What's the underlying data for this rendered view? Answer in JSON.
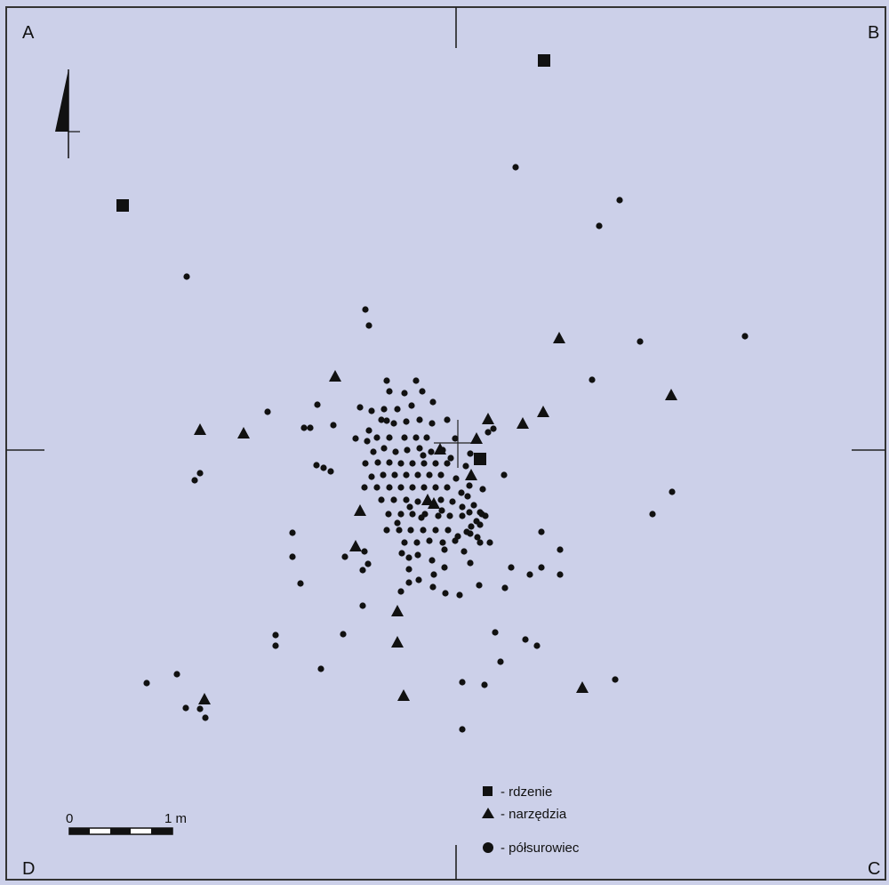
{
  "corners": {
    "a": "A",
    "b": "B",
    "c": "C",
    "d": "D"
  },
  "colors": {
    "background": "#ccd0e9",
    "ink": "#111111",
    "frame": "#333333"
  },
  "scale_bar": {
    "start_label": "0",
    "end_label": "1 m"
  },
  "north_arrow": {
    "icon": "north-arrow-icon"
  },
  "legend": [
    {
      "symbol": "square",
      "label": "- rdzenie"
    },
    {
      "symbol": "triangle",
      "label": "- narzędzia"
    },
    {
      "symbol": "circle",
      "label": "- półsurowiec"
    }
  ],
  "finds": {
    "rdzenie": [
      [
        138,
        231
      ],
      [
        612,
        68
      ],
      [
        540,
        516
      ]
    ],
    "narzedzia": [
      [
        225,
        483
      ],
      [
        274,
        487
      ],
      [
        377,
        423
      ],
      [
        629,
        380
      ],
      [
        549,
        471
      ],
      [
        588,
        476
      ],
      [
        611,
        463
      ],
      [
        755,
        444
      ],
      [
        495,
        505
      ],
      [
        536,
        493
      ],
      [
        530,
        534
      ],
      [
        405,
        574
      ],
      [
        400,
        614
      ],
      [
        488,
        566
      ],
      [
        481,
        562
      ],
      [
        447,
        687
      ],
      [
        447,
        722
      ],
      [
        454,
        782
      ],
      [
        230,
        786
      ],
      [
        655,
        773
      ]
    ],
    "polsurowiec": [
      [
        580,
        188
      ],
      [
        697,
        225
      ],
      [
        674,
        254
      ],
      [
        210,
        311
      ],
      [
        411,
        348
      ],
      [
        415,
        366
      ],
      [
        838,
        378
      ],
      [
        720,
        384
      ],
      [
        666,
        427
      ],
      [
        301,
        463
      ],
      [
        357,
        455
      ],
      [
        435,
        428
      ],
      [
        468,
        428
      ],
      [
        438,
        440
      ],
      [
        455,
        442
      ],
      [
        475,
        440
      ],
      [
        487,
        452
      ],
      [
        463,
        456
      ],
      [
        447,
        460
      ],
      [
        432,
        460
      ],
      [
        418,
        462
      ],
      [
        405,
        458
      ],
      [
        429,
        472
      ],
      [
        443,
        476
      ],
      [
        457,
        474
      ],
      [
        472,
        472
      ],
      [
        486,
        476
      ],
      [
        503,
        472
      ],
      [
        415,
        484
      ],
      [
        400,
        493
      ],
      [
        413,
        496
      ],
      [
        424,
        492
      ],
      [
        438,
        492
      ],
      [
        455,
        492
      ],
      [
        468,
        492
      ],
      [
        480,
        492
      ],
      [
        512,
        493
      ],
      [
        420,
        508
      ],
      [
        432,
        504
      ],
      [
        445,
        508
      ],
      [
        458,
        506
      ],
      [
        472,
        504
      ],
      [
        485,
        508
      ],
      [
        411,
        521
      ],
      [
        425,
        520
      ],
      [
        438,
        520
      ],
      [
        451,
        521
      ],
      [
        464,
        521
      ],
      [
        477,
        521
      ],
      [
        490,
        521
      ],
      [
        503,
        521
      ],
      [
        418,
        536
      ],
      [
        431,
        534
      ],
      [
        444,
        534
      ],
      [
        457,
        534
      ],
      [
        470,
        534
      ],
      [
        483,
        534
      ],
      [
        496,
        534
      ],
      [
        410,
        548
      ],
      [
        424,
        548
      ],
      [
        438,
        548
      ],
      [
        451,
        548
      ],
      [
        464,
        548
      ],
      [
        477,
        548
      ],
      [
        490,
        548
      ],
      [
        503,
        548
      ],
      [
        429,
        562
      ],
      [
        443,
        562
      ],
      [
        457,
        562
      ],
      [
        470,
        564
      ],
      [
        496,
        562
      ],
      [
        509,
        564
      ],
      [
        437,
        578
      ],
      [
        451,
        578
      ],
      [
        464,
        578
      ],
      [
        478,
        578
      ],
      [
        493,
        580
      ],
      [
        506,
        580
      ],
      [
        520,
        580
      ],
      [
        435,
        596
      ],
      [
        449,
        596
      ],
      [
        462,
        596
      ],
      [
        476,
        596
      ],
      [
        490,
        596
      ],
      [
        504,
        596
      ],
      [
        455,
        610
      ],
      [
        469,
        610
      ],
      [
        483,
        608
      ],
      [
        498,
        610
      ],
      [
        512,
        608
      ],
      [
        529,
        510
      ],
      [
        524,
        524
      ],
      [
        549,
        486
      ],
      [
        555,
        482
      ],
      [
        567,
        534
      ],
      [
        528,
        546
      ],
      [
        543,
        550
      ],
      [
        520,
        570
      ],
      [
        528,
        576
      ],
      [
        540,
        576
      ],
      [
        546,
        580
      ],
      [
        536,
        586
      ],
      [
        529,
        600
      ],
      [
        540,
        610
      ],
      [
        551,
        610
      ],
      [
        530,
        592
      ],
      [
        540,
        590
      ],
      [
        542,
        578
      ],
      [
        533,
        568
      ],
      [
        526,
        558
      ],
      [
        349,
        481
      ],
      [
        342,
        481
      ],
      [
        375,
        478
      ],
      [
        356,
        523
      ],
      [
        364,
        526
      ],
      [
        372,
        530
      ],
      [
        225,
        532
      ],
      [
        219,
        540
      ],
      [
        756,
        553
      ],
      [
        734,
        578
      ],
      [
        329,
        599
      ],
      [
        329,
        626
      ],
      [
        388,
        626
      ],
      [
        410,
        620
      ],
      [
        414,
        634
      ],
      [
        408,
        641
      ],
      [
        452,
        622
      ],
      [
        460,
        627
      ],
      [
        470,
        624
      ],
      [
        486,
        630
      ],
      [
        522,
        620
      ],
      [
        500,
        638
      ],
      [
        488,
        646
      ],
      [
        529,
        633
      ],
      [
        575,
        638
      ],
      [
        596,
        646
      ],
      [
        609,
        638
      ],
      [
        630,
        618
      ],
      [
        630,
        646
      ],
      [
        609,
        598
      ],
      [
        338,
        656
      ],
      [
        408,
        681
      ],
      [
        451,
        665
      ],
      [
        460,
        655
      ],
      [
        487,
        660
      ],
      [
        501,
        667
      ],
      [
        517,
        669
      ],
      [
        539,
        658
      ],
      [
        568,
        661
      ],
      [
        310,
        714
      ],
      [
        310,
        726
      ],
      [
        386,
        713
      ],
      [
        361,
        752
      ],
      [
        557,
        711
      ],
      [
        591,
        719
      ],
      [
        604,
        726
      ],
      [
        563,
        744
      ],
      [
        520,
        767
      ],
      [
        545,
        770
      ],
      [
        692,
        764
      ],
      [
        165,
        768
      ],
      [
        199,
        758
      ],
      [
        209,
        796
      ],
      [
        225,
        797
      ],
      [
        231,
        807
      ],
      [
        520,
        820
      ],
      [
        435,
        473
      ],
      [
        507,
        515
      ],
      [
        474,
        582
      ],
      [
        461,
        570
      ],
      [
        497,
        574
      ],
      [
        519,
        554
      ],
      [
        513,
        538
      ],
      [
        498,
        506
      ],
      [
        476,
        512
      ],
      [
        525,
        598
      ],
      [
        537,
        604
      ],
      [
        515,
        603
      ],
      [
        447,
        588
      ],
      [
        460,
        640
      ],
      [
        471,
        652
      ],
      [
        500,
        618
      ]
    ]
  }
}
